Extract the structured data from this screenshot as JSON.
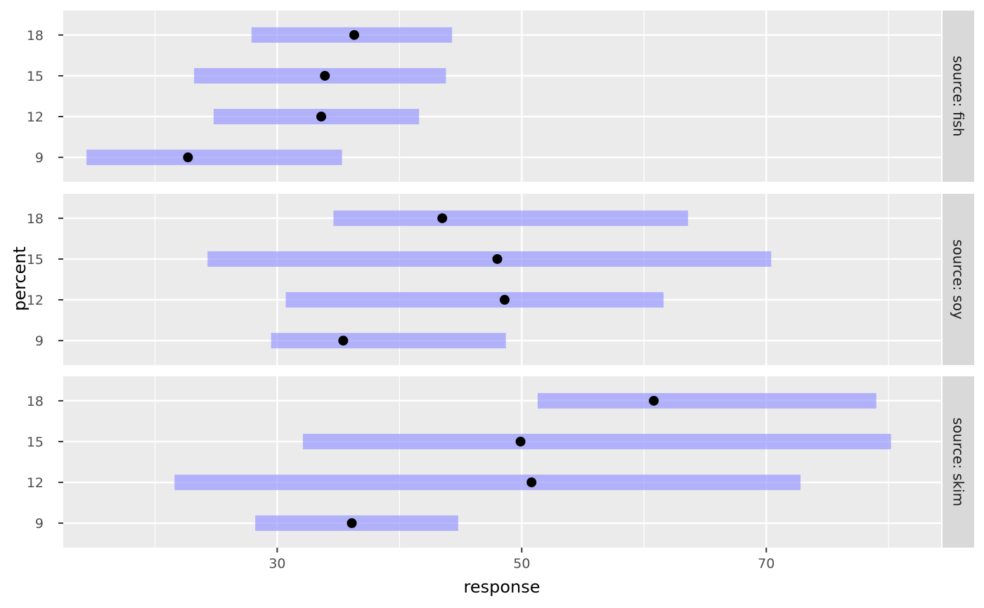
{
  "chart_data": {
    "type": "interval",
    "xlabel": "response",
    "ylabel": "percent",
    "xlim": [
      12.5,
      84.3
    ],
    "x_ticks": [
      30,
      50,
      70
    ],
    "y_categories": [
      "9",
      "12",
      "15",
      "18"
    ],
    "interval_color": "#9999FF",
    "point_color": "#000000",
    "panel_color": "#EBEBEB",
    "strip_color": "#D9D9D9",
    "facets": [
      {
        "strip": "source: fish",
        "rows": [
          {
            "percent": "9",
            "estimate": 22.7,
            "lower": 14.4,
            "upper": 35.3
          },
          {
            "percent": "12",
            "estimate": 33.6,
            "lower": 24.8,
            "upper": 41.6
          },
          {
            "percent": "15",
            "estimate": 33.9,
            "lower": 23.2,
            "upper": 43.8
          },
          {
            "percent": "18",
            "estimate": 36.3,
            "lower": 27.9,
            "upper": 44.3
          }
        ]
      },
      {
        "strip": "source: soy",
        "rows": [
          {
            "percent": "9",
            "estimate": 35.4,
            "lower": 29.5,
            "upper": 48.7
          },
          {
            "percent": "12",
            "estimate": 48.6,
            "lower": 30.7,
            "upper": 61.6
          },
          {
            "percent": "15",
            "estimate": 48.0,
            "lower": 24.3,
            "upper": 70.4
          },
          {
            "percent": "18",
            "estimate": 43.5,
            "lower": 34.6,
            "upper": 63.6
          }
        ]
      },
      {
        "strip": "source: skim",
        "rows": [
          {
            "percent": "9",
            "estimate": 36.1,
            "lower": 28.2,
            "upper": 44.8
          },
          {
            "percent": "12",
            "estimate": 50.8,
            "lower": 21.6,
            "upper": 72.8
          },
          {
            "percent": "15",
            "estimate": 49.9,
            "lower": 32.1,
            "upper": 80.2
          },
          {
            "percent": "18",
            "estimate": 60.8,
            "lower": 51.3,
            "upper": 79.0
          }
        ]
      }
    ]
  }
}
